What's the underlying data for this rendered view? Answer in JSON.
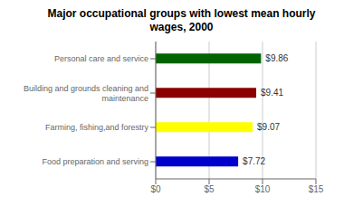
{
  "chart_data": {
    "type": "bar",
    "orientation": "horizontal",
    "title": "Major occupational groups with lowest mean hourly\nwages, 2000",
    "categories": [
      "Food preparation and serving",
      "Farming, fishing,and forestry",
      "Building and grounds cleaning and\nmaintenance",
      "Personal care and service"
    ],
    "values": [
      7.72,
      9.07,
      9.41,
      9.86
    ],
    "value_labels": [
      "$7.72",
      "$9.07",
      "$9.41",
      "$9.86"
    ],
    "data_labels": true,
    "colors": [
      "#0000CC",
      "#FFFF00",
      "#8B0000",
      "#006400"
    ],
    "xlim": [
      0,
      15
    ],
    "xticks": [
      {
        "value": 0,
        "label": "$0"
      },
      {
        "value": 5,
        "label": "$5"
      },
      {
        "value": 10,
        "label": "$10"
      },
      {
        "value": 15,
        "label": "$15"
      }
    ],
    "grid": true
  }
}
